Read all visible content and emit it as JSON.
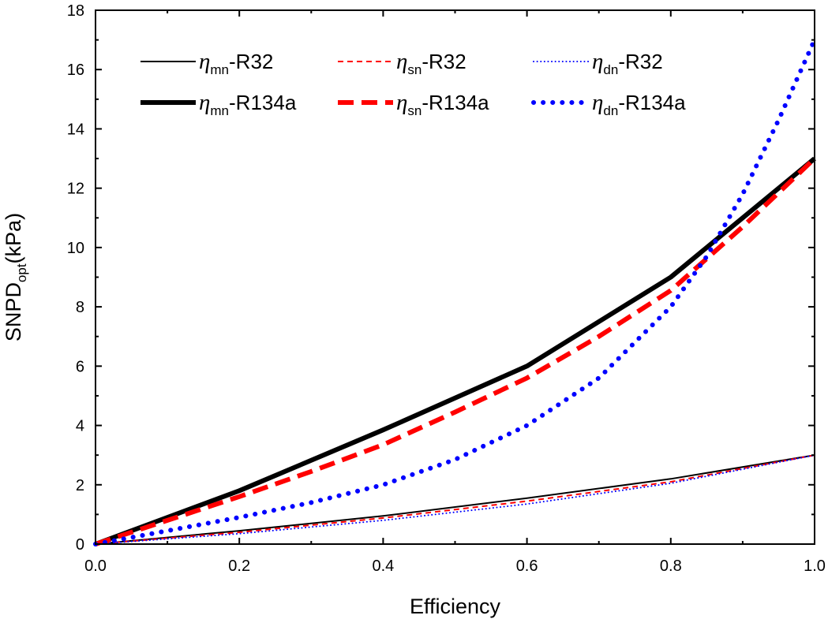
{
  "chart_data": {
    "type": "line",
    "xlabel": "Efficiency",
    "ylabel": {
      "main": "SNPD",
      "sub": "opt",
      "unit": "(kPa)"
    },
    "xlim": [
      0.0,
      1.0
    ],
    "ylim": [
      0,
      18
    ],
    "xticks": [
      "0.0",
      "0.2",
      "0.4",
      "0.6",
      "0.8",
      "1.0"
    ],
    "yticks": [
      "0",
      "2",
      "4",
      "6",
      "8",
      "10",
      "12",
      "14",
      "16",
      "18"
    ],
    "grid": false,
    "legend": {
      "placement": "top",
      "columns": 3
    },
    "series": [
      {
        "id": "mn-r32",
        "label": {
          "sym": "η",
          "sub": "mn",
          "suffix": "-R32"
        },
        "color": "#000000",
        "style": "solid",
        "weight": "thin",
        "x": [
          0,
          0.2,
          0.4,
          0.6,
          0.8,
          1.0
        ],
        "y": [
          0,
          0.45,
          0.95,
          1.55,
          2.2,
          3.0
        ]
      },
      {
        "id": "sn-r32",
        "label": {
          "sym": "η",
          "sub": "sn",
          "suffix": "-R32"
        },
        "color": "#ff0000",
        "style": "dashed",
        "weight": "thin",
        "x": [
          0,
          0.2,
          0.4,
          0.6,
          0.8,
          1.0
        ],
        "y": [
          0,
          0.4,
          0.88,
          1.45,
          2.1,
          3.0
        ]
      },
      {
        "id": "dn-r32",
        "label": {
          "sym": "η",
          "sub": "dn",
          "suffix": "-R32"
        },
        "color": "#0000ff",
        "style": "dotted",
        "weight": "thin",
        "x": [
          0,
          0.2,
          0.4,
          0.6,
          0.8,
          1.0
        ],
        "y": [
          0,
          0.35,
          0.8,
          1.35,
          2.05,
          3.0
        ]
      },
      {
        "id": "mn-r134a",
        "label": {
          "sym": "η",
          "sub": "mn",
          "suffix": "-R134a"
        },
        "color": "#000000",
        "style": "solid",
        "weight": "thick",
        "x": [
          0,
          0.2,
          0.4,
          0.6,
          0.8,
          1.0
        ],
        "y": [
          0,
          1.8,
          3.85,
          6.0,
          9.0,
          13.0
        ]
      },
      {
        "id": "sn-r134a",
        "label": {
          "sym": "η",
          "sub": "sn",
          "suffix": "-R134a"
        },
        "color": "#ff0000",
        "style": "dashed",
        "weight": "thick",
        "x": [
          0,
          0.1,
          0.2,
          0.3,
          0.4,
          0.5,
          0.6,
          0.7,
          0.8,
          0.9,
          1.0
        ],
        "y": [
          0,
          0.8,
          1.6,
          2.45,
          3.35,
          4.45,
          5.6,
          7.0,
          8.55,
          10.7,
          13.0
        ]
      },
      {
        "id": "dn-r134a",
        "label": {
          "sym": "η",
          "sub": "dn",
          "suffix": "-R134a"
        },
        "color": "#0000ff",
        "style": "dotted",
        "weight": "thick",
        "x": [
          0,
          0.1,
          0.2,
          0.3,
          0.4,
          0.5,
          0.6,
          0.7,
          0.8,
          0.85,
          0.9,
          0.95,
          1.0
        ],
        "y": [
          0,
          0.45,
          0.9,
          1.4,
          2.0,
          2.85,
          4.0,
          5.6,
          8.0,
          9.7,
          11.8,
          14.3,
          17.0
        ]
      }
    ]
  }
}
